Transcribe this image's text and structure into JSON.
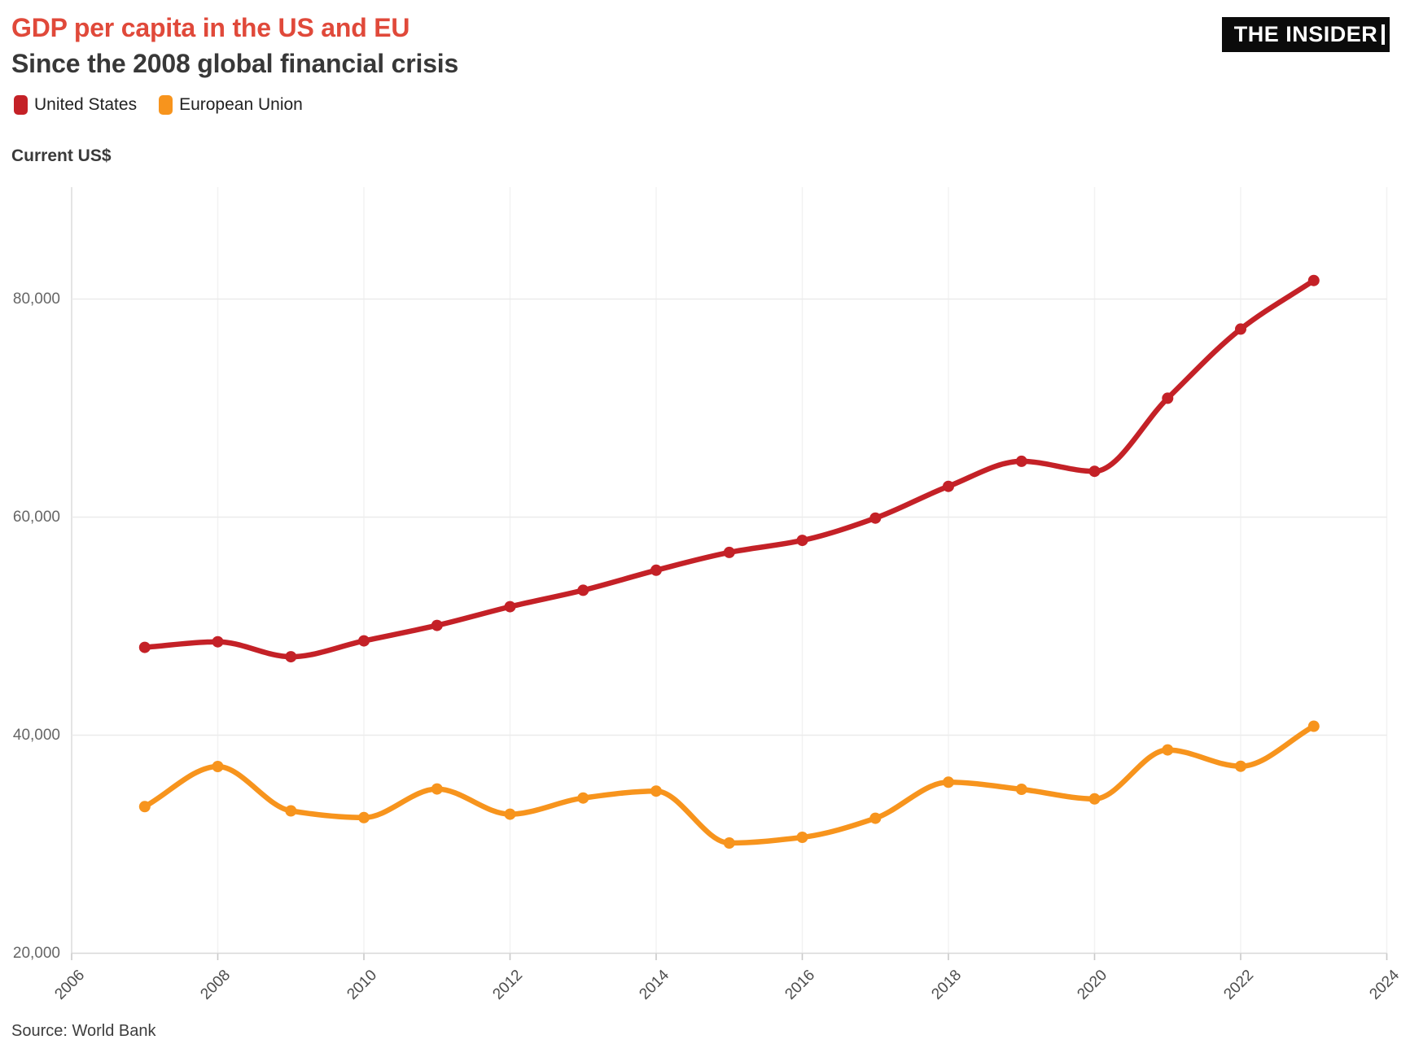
{
  "header": {
    "title": "GDP per capita in the US and EU",
    "subtitle": "Since the 2008 global financial crisis",
    "logo_text": "THE INSIDER"
  },
  "legend": {
    "items": [
      {
        "label": "United States",
        "color": "#c42127"
      },
      {
        "label": "European Union",
        "color": "#f7941d"
      }
    ]
  },
  "colors": {
    "title_red": "#e0493a",
    "subtitle_dark": "#383838",
    "us_red": "#c42127",
    "eu_orange": "#f7941d",
    "grid_h": "#ebebeb",
    "grid_v": "#f2f2f2",
    "axis_line": "#d8d8d8",
    "tick_mark": "#c9c9c9",
    "y_label_text": "#666666",
    "x_label_text": "#4d4d4d",
    "logo_bg": "#0b0b0b",
    "logo_text_color": "#ffffff"
  },
  "chart_data": {
    "type": "line",
    "title": "GDP per capita in the US and EU",
    "subtitle": "Since the 2008 global financial crisis",
    "ylabel": "Current US$",
    "xlabel": "",
    "source": "Source: World Bank",
    "x": [
      2007,
      2008,
      2009,
      2010,
      2011,
      2012,
      2013,
      2014,
      2015,
      2016,
      2017,
      2018,
      2019,
      2020,
      2021,
      2022,
      2023
    ],
    "series": [
      {
        "name": "United States",
        "color": "#c42127",
        "values": [
          48050,
          48570,
          47195,
          48651,
          50066,
          51784,
          53291,
          55124,
          56763,
          57867,
          59908,
          62823,
          65120,
          64200,
          70900,
          77250,
          81700
        ]
      },
      {
        "name": "European Union",
        "color": "#f7941d",
        "values": [
          33446,
          37130,
          33059,
          32440,
          35064,
          32752,
          34238,
          34870,
          30110,
          30637,
          32382,
          35684,
          35037,
          34153,
          38648,
          37150,
          40824
        ]
      }
    ],
    "x_ticks": [
      {
        "v": 2006,
        "label": "2006"
      },
      {
        "v": 2008,
        "label": "2008"
      },
      {
        "v": 2010,
        "label": "2010"
      },
      {
        "v": 2012,
        "label": "2012"
      },
      {
        "v": 2014,
        "label": "2014"
      },
      {
        "v": 2016,
        "label": "2016"
      },
      {
        "v": 2018,
        "label": "2018"
      },
      {
        "v": 2020,
        "label": "2020"
      },
      {
        "v": 2022,
        "label": "2022"
      },
      {
        "v": 2024,
        "label": "2024"
      }
    ],
    "y_ticks": [
      {
        "v": 20000,
        "label": "20,000"
      },
      {
        "v": 40000,
        "label": "40,000"
      },
      {
        "v": 60000,
        "label": "60,000"
      },
      {
        "v": 80000,
        "label": "80,000"
      }
    ],
    "xlim": [
      2006,
      2024
    ],
    "ylim": [
      20000,
      90000
    ],
    "grid": true,
    "legend_position": "top-left",
    "marker_radius": 7,
    "line_width": 6.5
  }
}
